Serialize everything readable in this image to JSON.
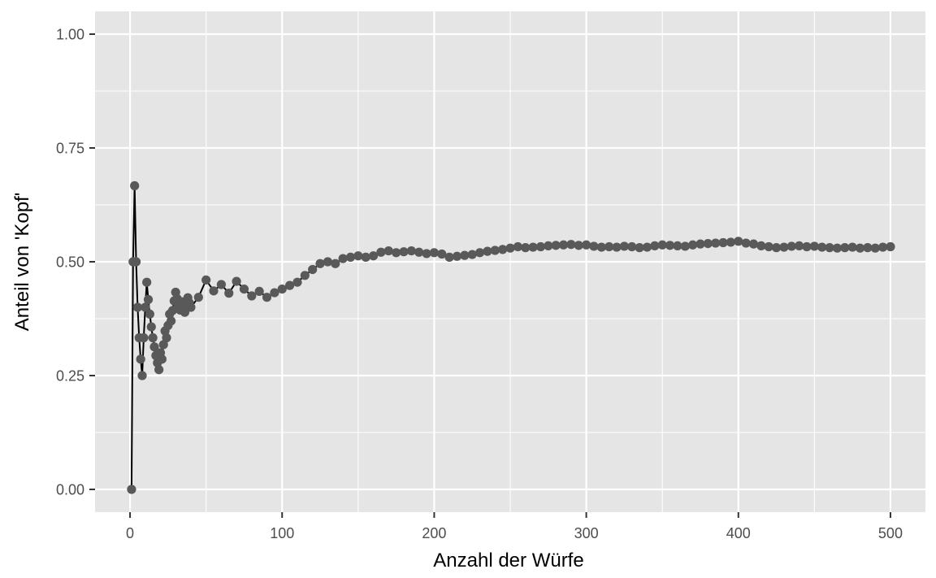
{
  "chart_data": {
    "type": "line",
    "title": "",
    "xlabel": "Anzahl der Würfe",
    "ylabel": "Anteil von 'Kopf'",
    "xlim": [
      -23,
      523
    ],
    "ylim": [
      -0.05,
      1.05
    ],
    "x_ticks": [
      0,
      100,
      200,
      300,
      400,
      500
    ],
    "x_tick_labels": [
      "0",
      "100",
      "200",
      "300",
      "400",
      "500"
    ],
    "y_ticks": [
      0,
      0.25,
      0.5,
      0.75,
      1
    ],
    "y_tick_labels": [
      "0.00",
      "0.25",
      "0.50",
      "0.75",
      "1.00"
    ],
    "grid": true,
    "colors": {
      "panel": "#e5e5e5",
      "grid": "#ffffff",
      "line": "#000000",
      "points": "#595959"
    },
    "series": [
      {
        "x": [
          1,
          2,
          3,
          4,
          5,
          6,
          7,
          8,
          9,
          10,
          11,
          12,
          13,
          14,
          15,
          16,
          17,
          18,
          19,
          20,
          21,
          22,
          23,
          24,
          25,
          26,
          27,
          28,
          29,
          30,
          31,
          32,
          33,
          34,
          35,
          36,
          37,
          38,
          39,
          40,
          45,
          50,
          55,
          60,
          65,
          70,
          75,
          80,
          85,
          90,
          95,
          100,
          105,
          110,
          115,
          120,
          125,
          130,
          135,
          140,
          145,
          150,
          155,
          160,
          165,
          170,
          175,
          180,
          185,
          190,
          195,
          200,
          205,
          210,
          215,
          220,
          225,
          230,
          235,
          240,
          245,
          250,
          255,
          260,
          265,
          270,
          275,
          280,
          285,
          290,
          295,
          300,
          305,
          310,
          315,
          320,
          325,
          330,
          335,
          340,
          345,
          350,
          355,
          360,
          365,
          370,
          375,
          380,
          385,
          390,
          395,
          400,
          405,
          410,
          415,
          420,
          425,
          430,
          435,
          440,
          445,
          450,
          455,
          460,
          465,
          470,
          475,
          480,
          485,
          490,
          495,
          500
        ],
        "y": [
          0,
          0.5,
          0.667,
          0.5,
          0.4,
          0.333,
          0.286,
          0.25,
          0.333,
          0.4,
          0.455,
          0.417,
          0.385,
          0.357,
          0.333,
          0.313,
          0.294,
          0.278,
          0.263,
          0.3,
          0.286,
          0.318,
          0.348,
          0.333,
          0.36,
          0.385,
          0.37,
          0.393,
          0.414,
          0.433,
          0.419,
          0.406,
          0.394,
          0.412,
          0.4,
          0.389,
          0.405,
          0.421,
          0.41,
          0.4,
          0.422,
          0.46,
          0.436,
          0.45,
          0.431,
          0.457,
          0.44,
          0.425,
          0.435,
          0.422,
          0.432,
          0.44,
          0.448,
          0.455,
          0.47,
          0.483,
          0.496,
          0.5,
          0.496,
          0.507,
          0.51,
          0.513,
          0.51,
          0.513,
          0.521,
          0.524,
          0.52,
          0.522,
          0.524,
          0.521,
          0.518,
          0.52,
          0.517,
          0.51,
          0.512,
          0.514,
          0.516,
          0.52,
          0.523,
          0.525,
          0.527,
          0.53,
          0.533,
          0.531,
          0.532,
          0.533,
          0.535,
          0.536,
          0.537,
          0.538,
          0.536,
          0.537,
          0.534,
          0.532,
          0.533,
          0.532,
          0.534,
          0.533,
          0.531,
          0.532,
          0.535,
          0.537,
          0.536,
          0.535,
          0.534,
          0.537,
          0.539,
          0.54,
          0.541,
          0.542,
          0.543,
          0.545,
          0.541,
          0.539,
          0.535,
          0.533,
          0.531,
          0.532,
          0.534,
          0.535,
          0.533,
          0.534,
          0.532,
          0.531,
          0.53,
          0.531,
          0.532,
          0.53,
          0.531,
          0.53,
          0.532,
          0.533
        ]
      }
    ]
  }
}
